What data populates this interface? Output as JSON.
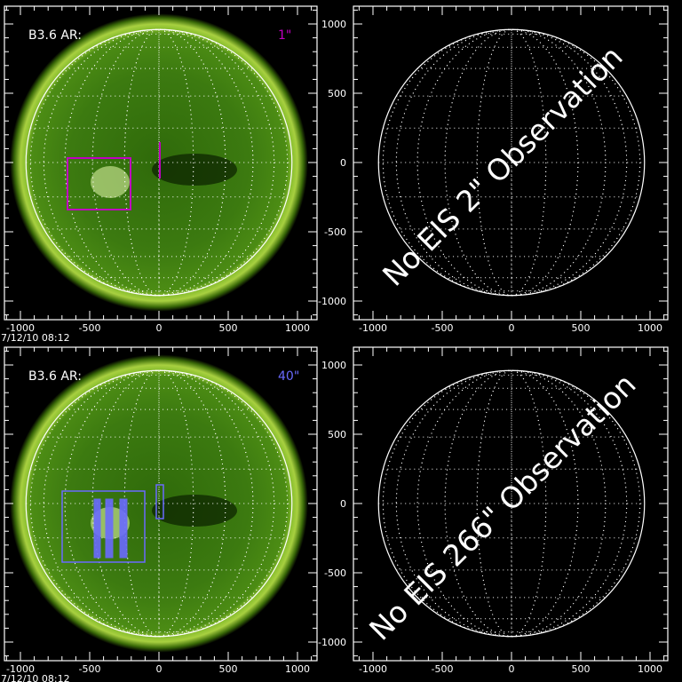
{
  "panels": [
    {
      "label": "B3.6 AR:",
      "scale": "1\"",
      "scale_color": "#c000c0",
      "timestamp": "7/12/10 08:12",
      "type": "image"
    },
    {
      "message": "No EIS 2\" Observation",
      "type": "empty"
    },
    {
      "label": "B3.6 AR:",
      "scale": "40\"",
      "scale_color": "#6a6aff",
      "timestamp": "7/12/10 08:12",
      "type": "image"
    },
    {
      "message": "No EIS 266\" Observation",
      "type": "empty"
    }
  ],
  "axis_ticks": [
    "-1000",
    "-500",
    "0",
    "500",
    "1000"
  ],
  "colors": {
    "background": "#000000",
    "sun": "#5a9a10",
    "corona": "#c8e060",
    "box_top": "#c000c0",
    "box_bottom": "#6a6aff"
  }
}
